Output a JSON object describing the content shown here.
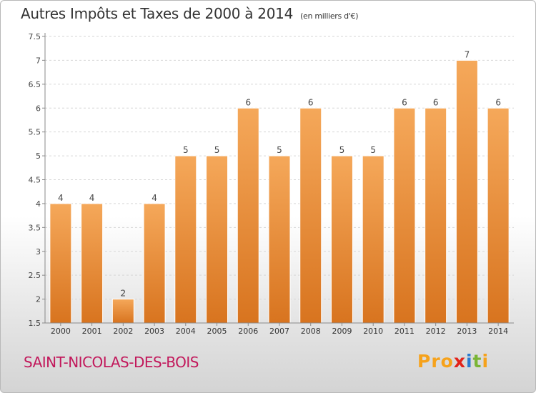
{
  "header": {
    "title": "Autres Impôts et Taxes de 2000 à 2014",
    "unit": "(en milliers d'€)"
  },
  "footer": {
    "commune": "SAINT-NICOLAS-DES-BOIS",
    "logo": {
      "p": "Pro",
      "x": "x",
      "i": "i",
      "t": "t",
      "i2": "i"
    }
  },
  "colors": {
    "bar_light": "#f5a85a",
    "bar_dark": "#d8741f",
    "commune_text": "#c2185b"
  },
  "chart_data": {
    "type": "bar",
    "categories": [
      "2000",
      "2001",
      "2002",
      "2003",
      "2004",
      "2005",
      "2006",
      "2007",
      "2008",
      "2009",
      "2010",
      "2011",
      "2012",
      "2013",
      "2014"
    ],
    "values": [
      4,
      4,
      2,
      4,
      5,
      5,
      6,
      5,
      6,
      5,
      5,
      6,
      6,
      7,
      6
    ],
    "ylim": [
      1.5,
      7.5
    ],
    "yticks": [
      1.5,
      2,
      2.5,
      3,
      3.5,
      4,
      4.5,
      5,
      5.5,
      6,
      6.5,
      7,
      7.5
    ],
    "ytick_labels": [
      "1.5",
      "2",
      "2.5",
      "3",
      "3.5",
      "4",
      "4.5",
      "5",
      "5.5",
      "6",
      "6.5",
      "7",
      "7.5"
    ],
    "grid": true,
    "title": "Autres Impôts et Taxes de 2000 à 2014",
    "xlabel": "",
    "ylabel": ""
  }
}
